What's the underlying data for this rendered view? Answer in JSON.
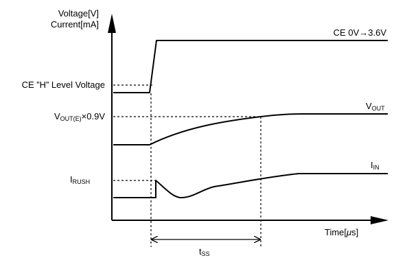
{
  "y_axis": {
    "label_top": "Voltage[V]",
    "label_bottom": "Current[mA]"
  },
  "x_axis": {
    "label_main": "Time[",
    "label_mu": "μ",
    "label_unit": "s]"
  },
  "ce_waveform": {
    "label": "CE 0V→3.6V"
  },
  "ce_threshold": {
    "label": "CE ”H” Level Voltage"
  },
  "vout_threshold": {
    "label_main": "V",
    "label_sub": "OUT(E)",
    "label_rest": "×0.9V"
  },
  "vout_waveform": {
    "label_main": "V",
    "label_sub": "OUT"
  },
  "irush_marker": {
    "label_main": "I",
    "label_sub": "RUSH"
  },
  "iin_waveform": {
    "label_main": "I",
    "label_sub": "IN"
  },
  "tss": {
    "label_main": "t",
    "label_sub": "SS"
  }
}
